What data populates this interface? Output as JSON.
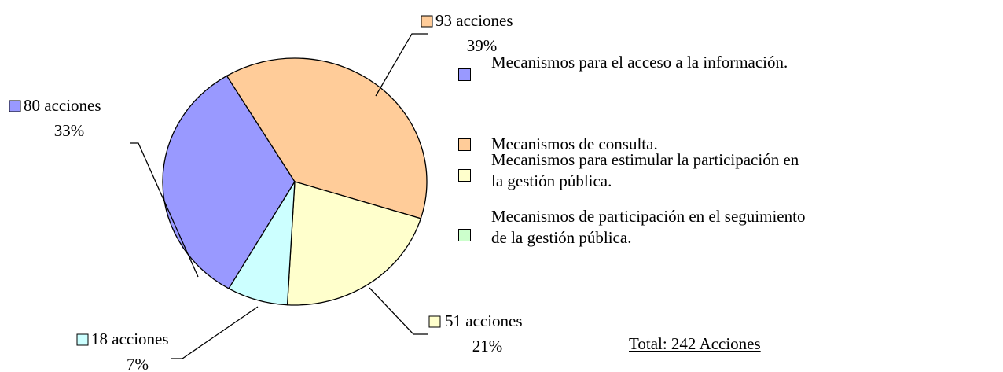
{
  "chart_data": {
    "type": "pie",
    "categories": [
      "Mecanismos para el acceso a la información.",
      "Mecanismos de consulta.",
      "Mecanismos para estimular la participación en la gestión pública.",
      "Mecanismos de participación en el seguimiento de la gestión pública."
    ],
    "values": [
      80,
      93,
      51,
      18
    ],
    "value_labels": [
      "80 acciones",
      "93 acciones",
      "51 acciones",
      "18 acciones"
    ],
    "percentages": [
      33,
      39,
      21,
      7
    ],
    "percentage_labels": [
      "33%",
      "39%",
      "21%",
      "7%"
    ],
    "colors": [
      "#9999ff",
      "#ffcc99",
      "#ffffcc",
      "#ccffff"
    ],
    "legend_colors": [
      "#9999ff",
      "#ffcc99",
      "#ffffcc",
      "#ccffcc"
    ],
    "annotation": "Total: 242 Acciones"
  }
}
